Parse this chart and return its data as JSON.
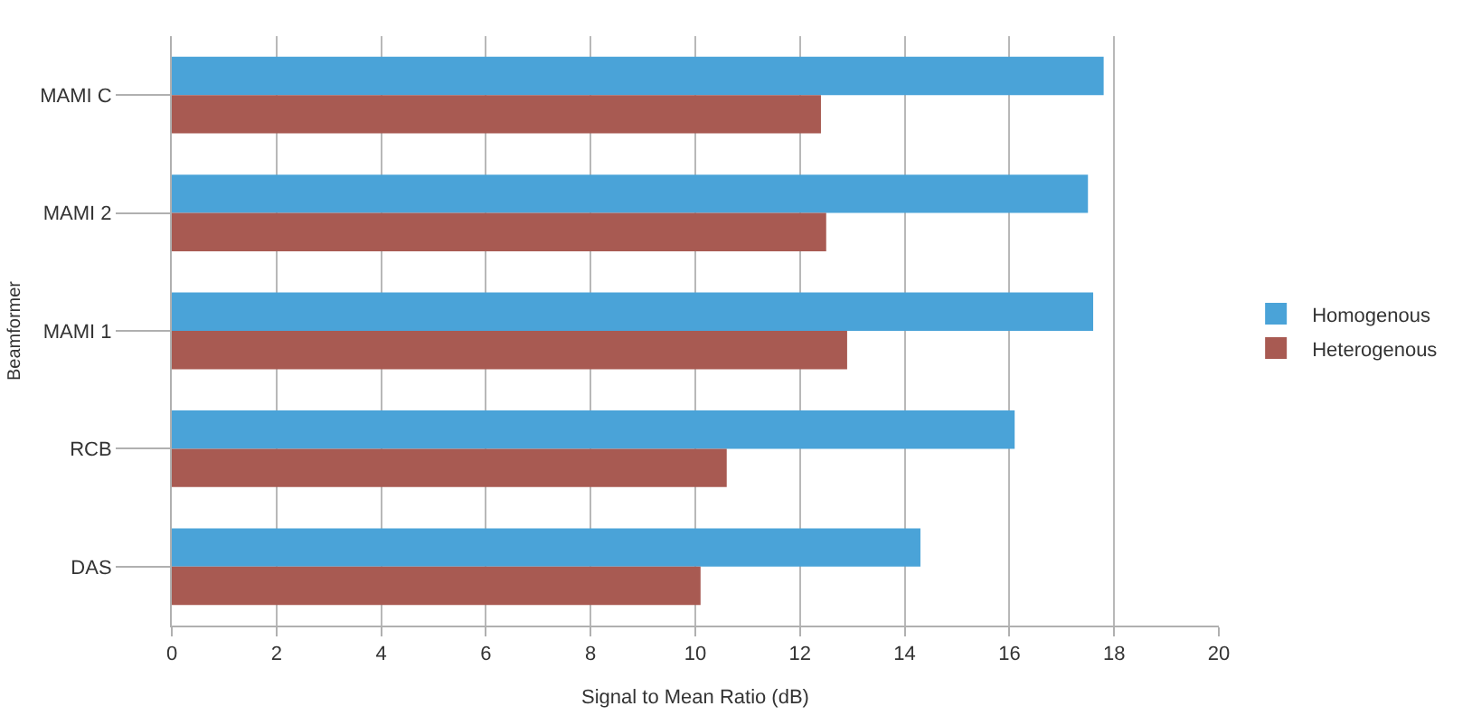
{
  "chart_data": {
    "type": "bar",
    "orientation": "horizontal",
    "xlabel": "Signal to Mean Ratio (dB)",
    "ylabel": "Beamformer",
    "categories": [
      "MAMI C",
      "MAMI 2",
      "MAMI 1",
      "RCB",
      "DAS"
    ],
    "series": [
      {
        "name": "Homogenous",
        "color": "#4aa3d8",
        "values": [
          17.8,
          17.5,
          17.6,
          16.1,
          14.3
        ]
      },
      {
        "name": "Heterogenous",
        "color": "#a85a52",
        "values": [
          12.4,
          12.5,
          12.9,
          10.6,
          10.1
        ]
      }
    ],
    "xlim": [
      0,
      20
    ],
    "xticks": [
      0,
      2,
      4,
      6,
      8,
      10,
      12,
      14,
      16,
      18,
      20
    ],
    "grid": "x",
    "legend": "right"
  }
}
